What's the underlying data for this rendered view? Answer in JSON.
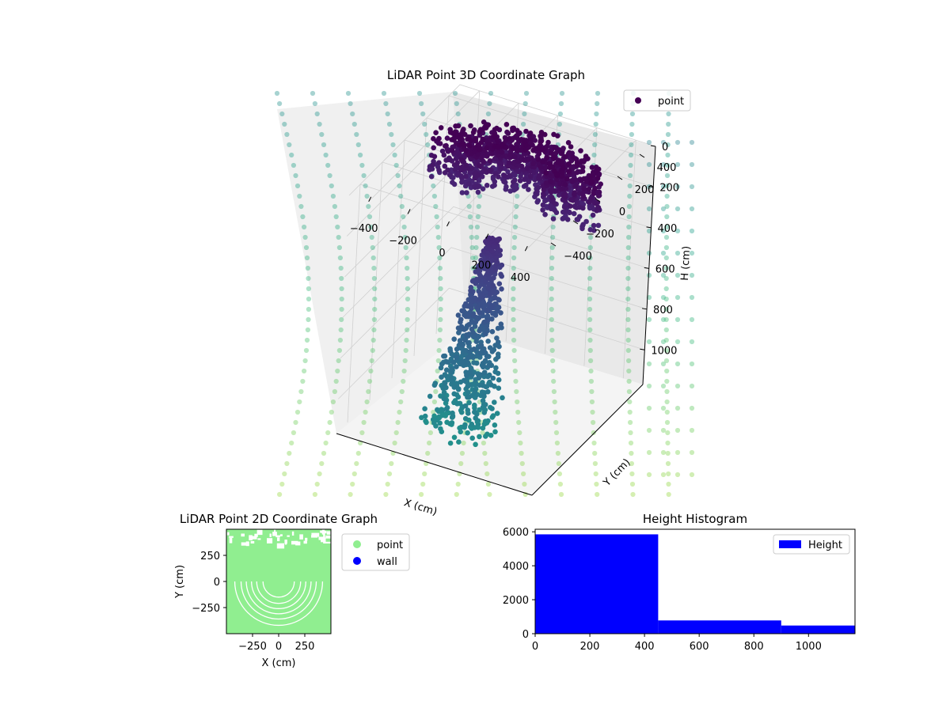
{
  "figure": {
    "background": "#ffffff"
  },
  "chart_data": [
    {
      "type": "scatter",
      "projection": "3d",
      "title": "LiDAR Point 3D Coordinate Graph",
      "xlabel": "X (cm)",
      "ylabel": "Y (cm)",
      "zlabel": "H (cm)",
      "xticks": [
        "−400",
        "−200",
        "0",
        "200",
        "400"
      ],
      "yticks": [
        "−400",
        "−200",
        "0",
        "200",
        "400"
      ],
      "zticks": [
        "0",
        "200",
        "400",
        "600",
        "800",
        "1000"
      ],
      "xlim": [
        -500,
        500
      ],
      "ylim": [
        -500,
        500
      ],
      "zlim": [
        0,
        1170
      ],
      "z_axis_inverted": true,
      "grid": true,
      "colormap": "viridis",
      "legend": {
        "entries": [
          "point"
        ],
        "placement": "top-right"
      },
      "series": [
        {
          "name": "point",
          "description_of_distribution": "Dense cluster at low H (0-450 cm) spanning wide in X/Y forming a bowl shape, narrowing to a column at higher H; background wall rings drawn in light teal/green",
          "approx_count_by_height_bin": {
            "0-450": 5900,
            "450-900": 780,
            "900-1170": 480
          }
        }
      ]
    },
    {
      "type": "scatter",
      "title": "LiDAR Point 2D Coordinate Graph",
      "xlabel": "X (cm)",
      "ylabel": "Y (cm)",
      "xticks": [
        "−250",
        "0",
        "250"
      ],
      "yticks": [
        "−250",
        "0",
        "250"
      ],
      "xlim": [
        -500,
        500
      ],
      "ylim": [
        -500,
        500
      ],
      "legend": {
        "entries": [
          "point",
          "wall"
        ],
        "placement": "outside-right"
      },
      "series": [
        {
          "name": "point",
          "color": "#90ee90"
        },
        {
          "name": "wall",
          "color": "#0000ff"
        }
      ]
    },
    {
      "type": "bar",
      "subtype": "histogram",
      "title": "Height Histogram",
      "xticks": [
        "0",
        "200",
        "400",
        "600",
        "800",
        "1000"
      ],
      "yticks": [
        "0",
        "2000",
        "4000",
        "6000"
      ],
      "xlim": [
        0,
        1170
      ],
      "ylim": [
        0,
        6150
      ],
      "bins": [
        [
          0,
          450
        ],
        [
          450,
          900
        ],
        [
          900,
          1170
        ]
      ],
      "values": [
        5850,
        780,
        480
      ],
      "legend": {
        "entries": [
          "Height"
        ],
        "placement": "top-right"
      },
      "series": [
        {
          "name": "Height",
          "color": "#0000ff",
          "values": [
            5850,
            780,
            480
          ]
        }
      ]
    }
  ]
}
